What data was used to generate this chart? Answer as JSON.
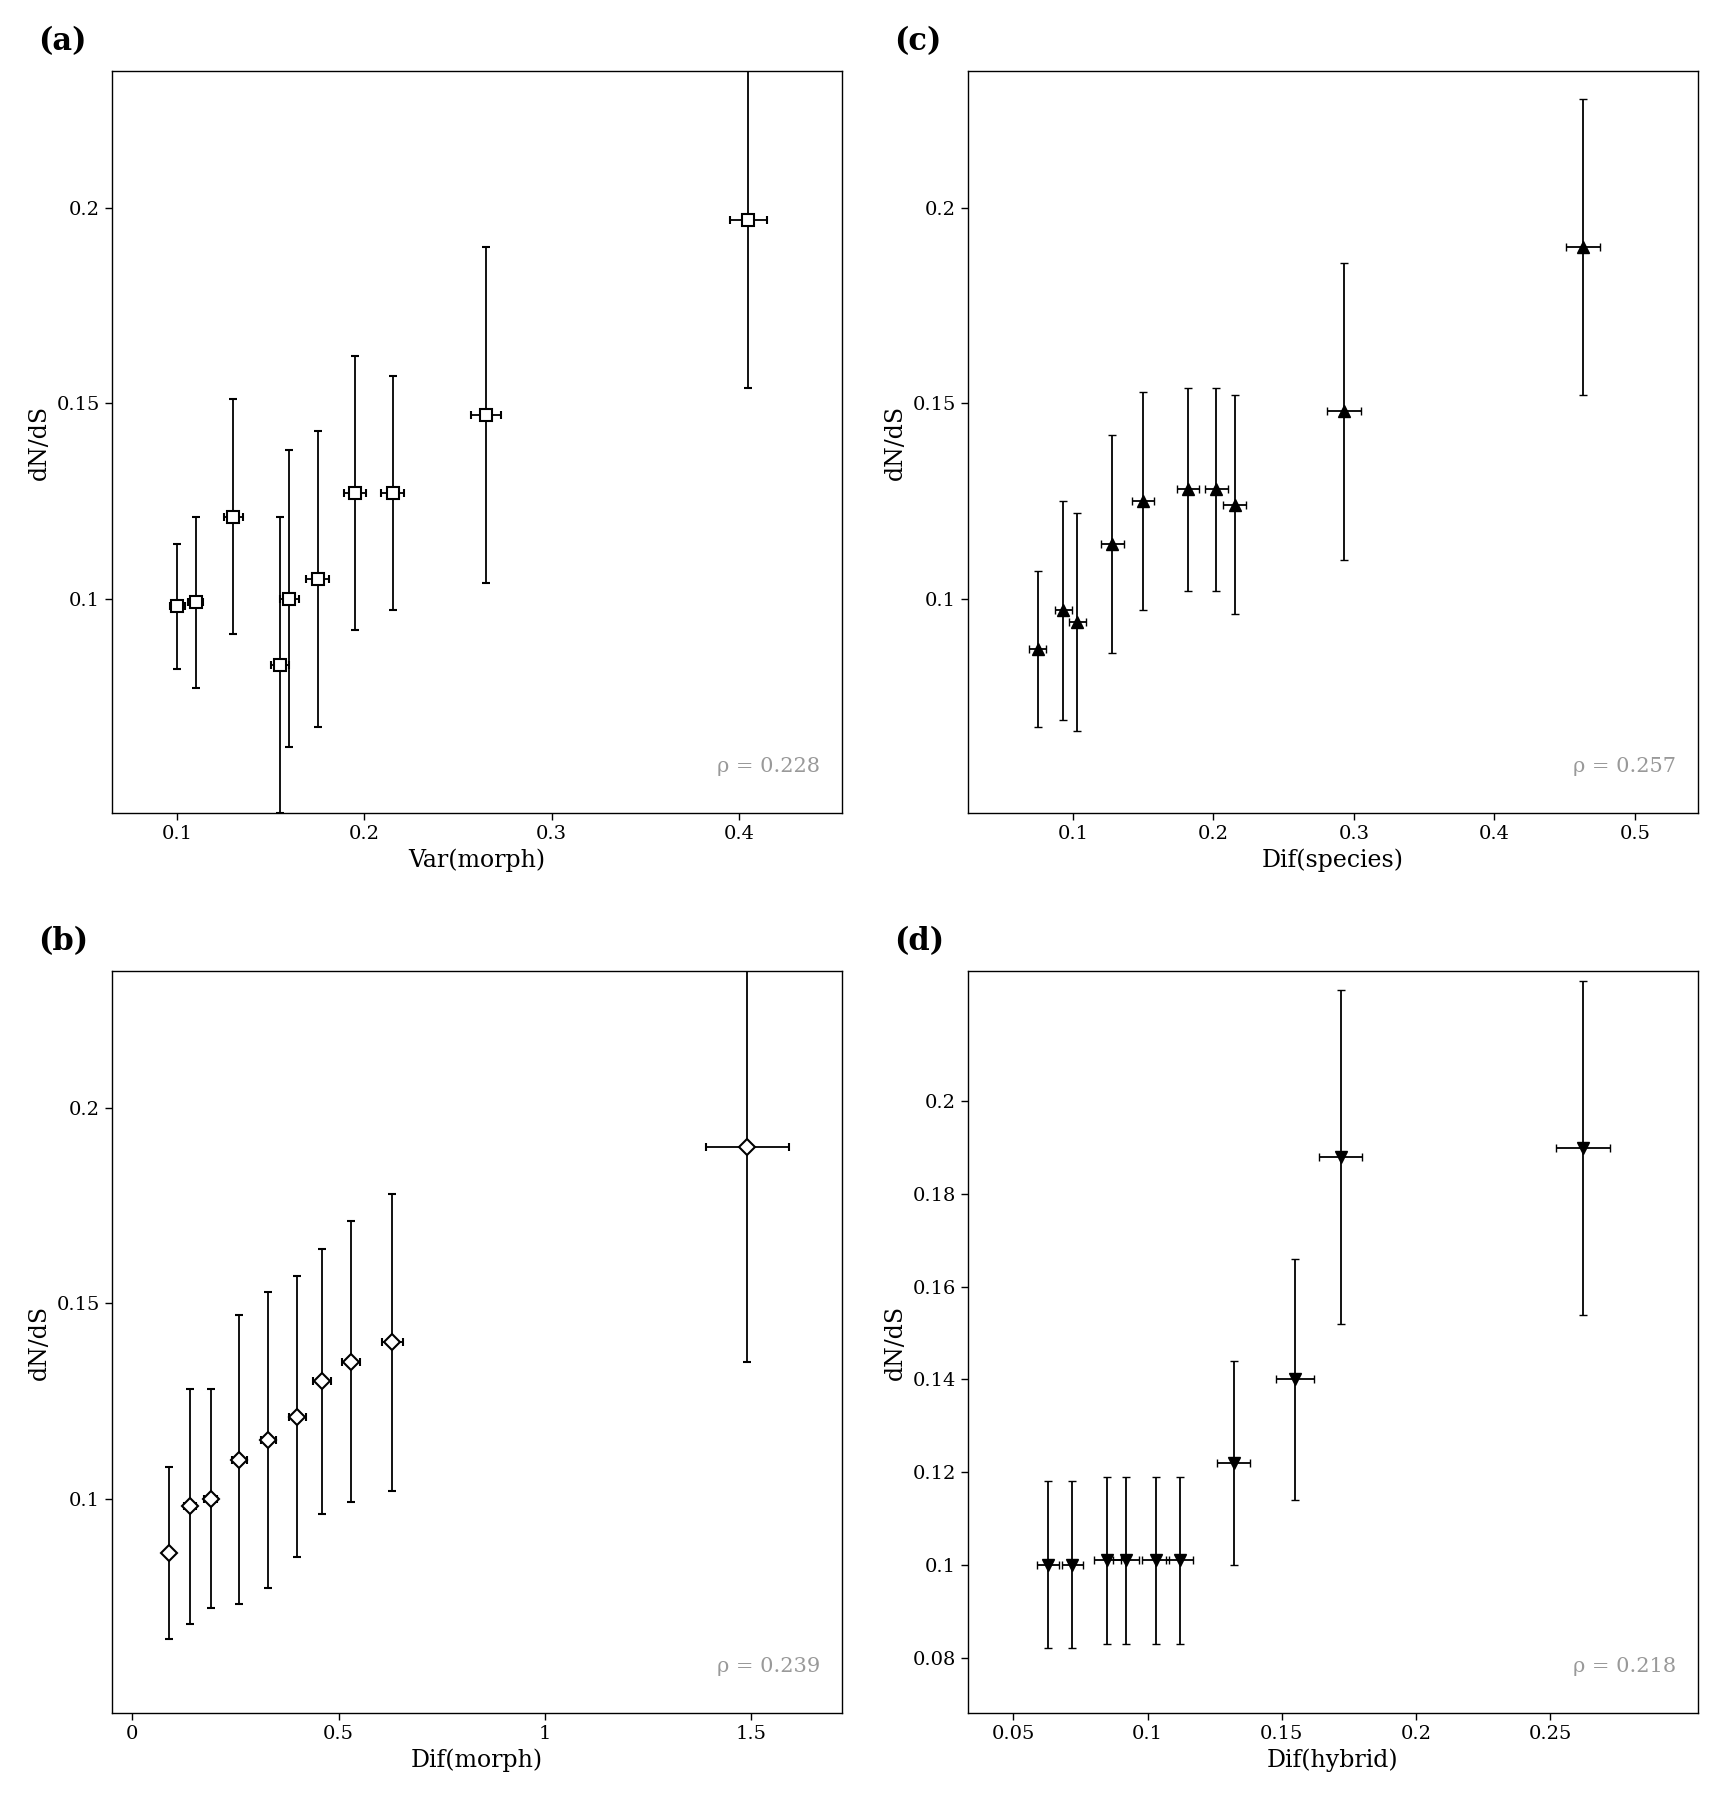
{
  "panel_a": {
    "label": "(a)",
    "xlabel": "Var(morph)",
    "ylabel": "dN/dS",
    "rho": "ρ = 0.228",
    "marker": "s",
    "x": [
      0.1,
      0.11,
      0.13,
      0.155,
      0.16,
      0.175,
      0.195,
      0.215,
      0.265,
      0.405
    ],
    "y": [
      0.098,
      0.099,
      0.121,
      0.083,
      0.1,
      0.105,
      0.127,
      0.127,
      0.147,
      0.197
    ],
    "xerr": [
      0.004,
      0.004,
      0.005,
      0.005,
      0.005,
      0.006,
      0.006,
      0.006,
      0.008,
      0.01
    ],
    "yerr": [
      0.016,
      0.022,
      0.03,
      0.038,
      0.038,
      0.038,
      0.035,
      0.03,
      0.043,
      0.043
    ],
    "xlim": [
      0.065,
      0.455
    ],
    "ylim": [
      0.045,
      0.235
    ],
    "xticks": [
      0.1,
      0.2,
      0.3,
      0.4
    ],
    "yticks": [
      0.1,
      0.15,
      0.2
    ]
  },
  "panel_b": {
    "label": "(b)",
    "xlabel": "Dif(morph)",
    "ylabel": "dN/dS",
    "rho": "ρ = 0.239",
    "marker": "D",
    "x": [
      0.09,
      0.14,
      0.19,
      0.26,
      0.33,
      0.4,
      0.46,
      0.53,
      0.63,
      1.49
    ],
    "y": [
      0.086,
      0.098,
      0.1,
      0.11,
      0.115,
      0.121,
      0.13,
      0.135,
      0.14,
      0.19
    ],
    "xerr": [
      0.01,
      0.015,
      0.015,
      0.018,
      0.018,
      0.02,
      0.022,
      0.022,
      0.025,
      0.1
    ],
    "yerr": [
      0.022,
      0.03,
      0.028,
      0.037,
      0.038,
      0.036,
      0.034,
      0.036,
      0.038,
      0.055
    ],
    "xlim": [
      -0.05,
      1.72
    ],
    "ylim": [
      0.045,
      0.235
    ],
    "xticks": [
      0.0,
      0.5,
      1.0,
      1.5
    ],
    "yticks": [
      0.1,
      0.15,
      0.2
    ]
  },
  "panel_c": {
    "label": "(c)",
    "xlabel": "Dif(species)",
    "ylabel": "dN/dS",
    "rho": "ρ = 0.257",
    "marker": "^",
    "x": [
      0.075,
      0.093,
      0.103,
      0.128,
      0.15,
      0.182,
      0.202,
      0.215,
      0.293,
      0.463
    ],
    "y": [
      0.087,
      0.097,
      0.094,
      0.114,
      0.125,
      0.128,
      0.128,
      0.124,
      0.148,
      0.19
    ],
    "xerr": [
      0.006,
      0.006,
      0.006,
      0.008,
      0.008,
      0.008,
      0.008,
      0.008,
      0.012,
      0.012
    ],
    "yerr": [
      0.02,
      0.028,
      0.028,
      0.028,
      0.028,
      0.026,
      0.026,
      0.028,
      0.038,
      0.038
    ],
    "xlim": [
      0.025,
      0.545
    ],
    "ylim": [
      0.045,
      0.235
    ],
    "xticks": [
      0.1,
      0.2,
      0.3,
      0.4,
      0.5
    ],
    "yticks": [
      0.1,
      0.15,
      0.2
    ]
  },
  "panel_d": {
    "label": "(d)",
    "xlabel": "Dif(hybrid)",
    "ylabel": "dN/dS",
    "rho": "ρ = 0.218",
    "marker": "v",
    "x": [
      0.063,
      0.072,
      0.085,
      0.092,
      0.103,
      0.112,
      0.132,
      0.155,
      0.172,
      0.262
    ],
    "y": [
      0.1,
      0.1,
      0.101,
      0.101,
      0.101,
      0.101,
      0.122,
      0.14,
      0.188,
      0.19
    ],
    "xerr": [
      0.004,
      0.004,
      0.005,
      0.005,
      0.005,
      0.005,
      0.006,
      0.007,
      0.008,
      0.01
    ],
    "yerr": [
      0.018,
      0.018,
      0.018,
      0.018,
      0.018,
      0.018,
      0.022,
      0.026,
      0.036,
      0.036
    ],
    "xlim": [
      0.033,
      0.305
    ],
    "ylim": [
      0.068,
      0.228
    ],
    "xticks": [
      0.05,
      0.1,
      0.15,
      0.2,
      0.25
    ],
    "yticks": [
      0.08,
      0.1,
      0.12,
      0.14,
      0.16,
      0.18,
      0.2
    ]
  },
  "rho_color": "#999999",
  "marker_color": "#000000",
  "marker_size": 8,
  "capsize": 3,
  "elinewidth": 1.3,
  "tick_fontsize": 14,
  "axis_label_fontsize": 17,
  "rho_fontsize": 15,
  "panel_label_fontsize": 22
}
